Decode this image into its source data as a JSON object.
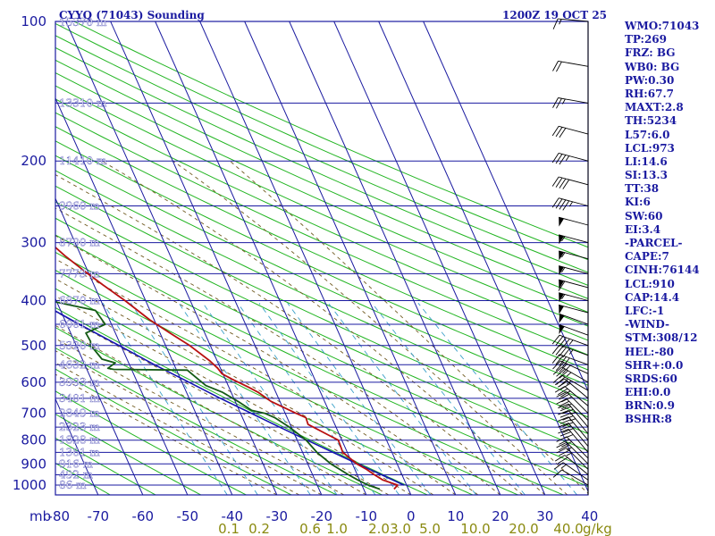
{
  "chart_data": {
    "type": "skew-t log-p sounding",
    "title_left": "CYYQ (71043) Sounding",
    "title_right": "1200Z 19 OCT 25",
    "pressure_unit_label": "mb",
    "mixing_ratio_unit_label": "g/kg",
    "pressure_levels": [
      100,
      200,
      300,
      400,
      500,
      600,
      700,
      800,
      900,
      1000
    ],
    "temperature_ticks": [
      -80,
      -70,
      -60,
      -50,
      -40,
      -30,
      -20,
      -10,
      0,
      10,
      20,
      30,
      40
    ],
    "mixing_ratio_labels": [
      "0.1",
      "0.2",
      "0.6",
      "1.0",
      "2.0",
      "3.0",
      "5.0",
      "10.0",
      "20.0",
      "40.0"
    ],
    "height_labels": [
      {
        "p": 100,
        "text": "15370 m"
      },
      {
        "p": 150,
        "text": "13310 m"
      },
      {
        "p": 200,
        "text": "11410 m"
      },
      {
        "p": 250,
        "text": "9960 m"
      },
      {
        "p": 300,
        "text": "8790 m"
      },
      {
        "p": 350,
        "text": "7773 m"
      },
      {
        "p": 400,
        "text": "6870 m"
      },
      {
        "p": 450,
        "text": "6061 m"
      },
      {
        "p": 500,
        "text": "5320 m"
      },
      {
        "p": 550,
        "text": "4632 m"
      },
      {
        "p": 600,
        "text": "3993 m"
      },
      {
        "p": 650,
        "text": "3401 m"
      },
      {
        "p": 700,
        "text": "2849 m"
      },
      {
        "p": 750,
        "text": "2323 m"
      },
      {
        "p": 800,
        "text": "1828 m"
      },
      {
        "p": 850,
        "text": "1361 m"
      },
      {
        "p": 900,
        "text": "916 m"
      },
      {
        "p": 950,
        "text": "492 m"
      },
      {
        "p": 1000,
        "text": "86 m"
      }
    ],
    "temperature_profile": [
      [
        1020,
        -3.2
      ],
      [
        1000,
        -2.0
      ],
      [
        975,
        -4.8
      ],
      [
        950,
        -6.2
      ],
      [
        925,
        -7.4
      ],
      [
        900,
        -9.0
      ],
      [
        850,
        -11.0
      ],
      [
        800,
        -10.8
      ],
      [
        780,
        -12.5
      ],
      [
        740,
        -16.0
      ],
      [
        715,
        -15.8
      ],
      [
        700,
        -17.6
      ],
      [
        660,
        -22.0
      ],
      [
        630,
        -24.0
      ],
      [
        615,
        -25.6
      ],
      [
        590,
        -28.6
      ],
      [
        575,
        -30.2
      ],
      [
        560,
        -30.6
      ],
      [
        540,
        -31.6
      ],
      [
        500,
        -34.6
      ],
      [
        470,
        -37.8
      ],
      [
        440,
        -41.0
      ],
      [
        400,
        -44.6
      ],
      [
        370,
        -48.0
      ],
      [
        345,
        -50.8
      ],
      [
        320,
        -53.6
      ],
      [
        300,
        -55.6
      ],
      [
        280,
        -58.0
      ],
      [
        255,
        -60.8
      ],
      [
        240,
        -61.4
      ],
      [
        225,
        -62.8
      ],
      [
        215,
        -62.2
      ],
      [
        200,
        -60.8
      ],
      [
        185,
        -59.2
      ],
      [
        165,
        -59.0
      ],
      [
        150,
        -59.2
      ],
      [
        135,
        -58.2
      ],
      [
        120,
        -57.4
      ],
      [
        100,
        -57.0
      ]
    ],
    "dewpoint_profile": [
      [
        1020,
        -6.4
      ],
      [
        1000,
        -8.6
      ],
      [
        975,
        -10.4
      ],
      [
        950,
        -12.0
      ],
      [
        925,
        -13.4
      ],
      [
        900,
        -14.8
      ],
      [
        850,
        -16.8
      ],
      [
        800,
        -18.0
      ],
      [
        750,
        -20.4
      ],
      [
        715,
        -22.8
      ],
      [
        700,
        -24.6
      ],
      [
        690,
        -27.2
      ],
      [
        660,
        -29.4
      ],
      [
        630,
        -32.0
      ],
      [
        610,
        -35.0
      ],
      [
        575,
        -37.0
      ],
      [
        565,
        -37.6
      ],
      [
        563,
        -54.0
      ],
      [
        560,
        -55.2
      ],
      [
        545,
        -53.0
      ],
      [
        535,
        -55.6
      ],
      [
        510,
        -56.4
      ],
      [
        500,
        -56.8
      ],
      [
        490,
        -56.4
      ],
      [
        470,
        -56.6
      ],
      [
        450,
        -51.4
      ],
      [
        420,
        -52.2
      ],
      [
        405,
        -59.2
      ],
      [
        395,
        -64.0
      ],
      [
        385,
        -69.0
      ],
      [
        365,
        -66.0
      ],
      [
        350,
        -64.6
      ],
      [
        335,
        -69.0
      ],
      [
        320,
        -73.0
      ],
      [
        300,
        -74.4
      ],
      [
        270,
        -75.8
      ],
      [
        250,
        -78.4
      ],
      [
        215,
        -80.0
      ],
      [
        190,
        -81.0
      ],
      [
        170,
        -81.6
      ]
    ],
    "parcel_profile": [
      [
        1000,
        -0.6
      ],
      [
        950,
        -4.6
      ],
      [
        910,
        -8.0
      ],
      [
        850,
        -13.2
      ],
      [
        800,
        -17.8
      ],
      [
        750,
        -22.6
      ],
      [
        700,
        -27.6
      ],
      [
        650,
        -33.0
      ],
      [
        600,
        -38.4
      ],
      [
        550,
        -44.4
      ],
      [
        500,
        -50.4
      ],
      [
        450,
        -57.2
      ],
      [
        400,
        -64.4
      ],
      [
        350,
        -72.4
      ],
      [
        300,
        -81.4
      ],
      [
        275,
        -86.4
      ]
    ],
    "wind_barbs": [
      {
        "p": 1000,
        "dir": 300,
        "spd": 10
      },
      {
        "p": 975,
        "dir": 305,
        "spd": 15
      },
      {
        "p": 950,
        "dir": 310,
        "spd": 20
      },
      {
        "p": 925,
        "dir": 315,
        "spd": 25
      },
      {
        "p": 900,
        "dir": 315,
        "spd": 25
      },
      {
        "p": 875,
        "dir": 315,
        "spd": 30
      },
      {
        "p": 850,
        "dir": 320,
        "spd": 30
      },
      {
        "p": 825,
        "dir": 320,
        "spd": 30
      },
      {
        "p": 800,
        "dir": 320,
        "spd": 30
      },
      {
        "p": 775,
        "dir": 320,
        "spd": 35
      },
      {
        "p": 750,
        "dir": 320,
        "spd": 35
      },
      {
        "p": 725,
        "dir": 315,
        "spd": 30
      },
      {
        "p": 700,
        "dir": 315,
        "spd": 30
      },
      {
        "p": 675,
        "dir": 310,
        "spd": 30
      },
      {
        "p": 650,
        "dir": 310,
        "spd": 30
      },
      {
        "p": 625,
        "dir": 300,
        "spd": 35
      },
      {
        "p": 600,
        "dir": 300,
        "spd": 35
      },
      {
        "p": 575,
        "dir": 295,
        "spd": 40
      },
      {
        "p": 550,
        "dir": 290,
        "spd": 40
      },
      {
        "p": 525,
        "dir": 290,
        "spd": 45
      },
      {
        "p": 500,
        "dir": 290,
        "spd": 45
      },
      {
        "p": 475,
        "dir": 290,
        "spd": 50
      },
      {
        "p": 450,
        "dir": 290,
        "spd": 50
      },
      {
        "p": 425,
        "dir": 285,
        "spd": 50
      },
      {
        "p": 400,
        "dir": 285,
        "spd": 55
      },
      {
        "p": 375,
        "dir": 285,
        "spd": 60
      },
      {
        "p": 350,
        "dir": 285,
        "spd": 55
      },
      {
        "p": 325,
        "dir": 285,
        "spd": 55
      },
      {
        "p": 300,
        "dir": 285,
        "spd": 55
      },
      {
        "p": 275,
        "dir": 285,
        "spd": 50
      },
      {
        "p": 250,
        "dir": 285,
        "spd": 45
      },
      {
        "p": 225,
        "dir": 285,
        "spd": 40
      },
      {
        "p": 200,
        "dir": 285,
        "spd": 35
      },
      {
        "p": 175,
        "dir": 285,
        "spd": 30
      },
      {
        "p": 150,
        "dir": 280,
        "spd": 25
      },
      {
        "p": 125,
        "dir": 280,
        "spd": 20
      },
      {
        "p": 100,
        "dir": 275,
        "spd": 15
      }
    ],
    "colors": {
      "isobar": "#1a1aa0",
      "isotherm": "#1a1aa0",
      "dry_adiabat": "#22b522",
      "moist_adiabat": "#705a20",
      "mixing_ratio": "#3aa0c8",
      "temperature": "#b81010",
      "dewpoint": "#145a14",
      "parcel": "#1414b0",
      "wind": "#000000",
      "text": "#1a1aa0",
      "mix_label": "#8a8a10"
    }
  },
  "indices": [
    "WMO:71043",
    "TP:269",
    "FRZ: BG",
    "WB0: BG",
    "PW:0.30",
    "RH:67.7",
    "MAXT:2.8",
    "TH:5234",
    "L57:6.0",
    "LCL:973",
    "LI:14.6",
    "SI:13.3",
    "TT:38",
    "KI:6",
    "SW:60",
    "EI:3.4",
    "-PARCEL-",
    "CAPE:7",
    "CINH:76144",
    "LCL:910",
    "CAP:14.4",
    "LFC:-1",
    "-WIND-",
    "STM:308/12",
    "HEL:-80",
    "SHR+:0.0",
    "SRDS:60",
    "EHI:0.0",
    "BRN:0.9",
    "BSHR:8"
  ]
}
